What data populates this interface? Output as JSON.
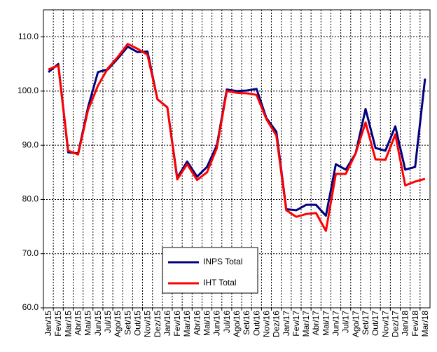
{
  "chart_data": {
    "type": "line",
    "categories": [
      "Jan/15",
      "Fev/15",
      "Mar/15",
      "Abr/15",
      "Mai/15",
      "Jun/15",
      "Jul/15",
      "Ago/15",
      "Set/15",
      "Out/15",
      "Nov/15",
      "Dez/15",
      "Jan/16",
      "Fev/16",
      "Mar/16",
      "Abr/16",
      "Mai/16",
      "Jun/16",
      "Jul/16",
      "Ago/16",
      "Set/16",
      "Out/16",
      "Nov/16",
      "Dez/16",
      "Jan/17",
      "Fev/17",
      "Mar/17",
      "Abr/17",
      "Mai/17",
      "Jun/17",
      "Jul/17",
      "Ago/17",
      "Set/17",
      "Out/17",
      "Nov/17",
      "Dez/17",
      "Jan/18",
      "Fev/18",
      "Mar/18"
    ],
    "series": [
      {
        "name": "INPS Total",
        "color": "#000080",
        "values": [
          103.5,
          105,
          88.7,
          88.5,
          97,
          103.5,
          104,
          106,
          108.2,
          107.2,
          107.3,
          98.5,
          97,
          84,
          87,
          84.2,
          86,
          90,
          100.3,
          100,
          100.1,
          100.4,
          95,
          92.5,
          78.2,
          78,
          79,
          79,
          77,
          86.5,
          85.5,
          88.5,
          96.7,
          89.5,
          89,
          93.5,
          85.5,
          86,
          102.3
        ]
      },
      {
        "name": "IHT Total",
        "color": "#ff0000",
        "values": [
          104,
          104.7,
          89,
          88.3,
          96.5,
          101,
          104.2,
          106.3,
          108.7,
          107.8,
          106.7,
          98.5,
          97,
          83.7,
          86.5,
          83.6,
          85,
          89.5,
          100,
          99.7,
          99.6,
          99.3,
          94.8,
          91.8,
          78,
          76.8,
          77.3,
          77.5,
          74.2,
          84.7,
          84.7,
          88.5,
          94.2,
          87.4,
          87.3,
          92,
          82.6,
          83.3,
          83.8
        ]
      }
    ],
    "ylim": [
      60,
      115
    ],
    "yticks": [
      {
        "value": 60,
        "label": "60.0"
      },
      {
        "value": 70,
        "label": "70.0"
      },
      {
        "value": 80,
        "label": "80.0"
      },
      {
        "value": 90,
        "label": "90.0"
      },
      {
        "value": 100,
        "label": "100.0"
      },
      {
        "value": 110,
        "label": "110.0"
      }
    ],
    "grid": true,
    "legend": "inside"
  }
}
